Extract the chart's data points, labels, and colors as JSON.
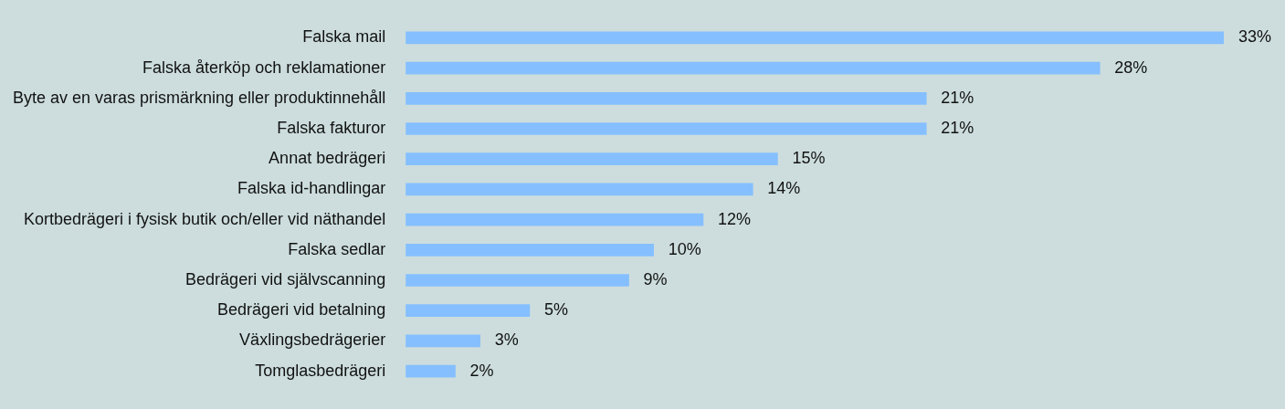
{
  "chart_data": {
    "type": "bar",
    "orientation": "horizontal",
    "tick_labels": "y",
    "color": "#85bfff",
    "categories": [
      "Falska mail",
      "Falska återköp och reklamationer",
      "Byte av en varas prismärkning eller produktinnehåll",
      "Falska fakturor",
      "Annat bedrägeri",
      "Falska id-handlingar",
      "Kortbedrägeri i fysisk butik och/eller vid näthandel",
      "Falska sedlar",
      "Bedrägeri vid självscanning",
      "Bedrägeri vid betalning",
      "Växlingsbedrägerier",
      "Tomglasbedrägeri"
    ],
    "values": [
      33,
      28,
      21,
      21,
      15,
      14,
      12,
      10,
      9,
      5,
      3,
      2
    ],
    "value_labels": [
      "33%",
      "28%",
      "21%",
      "21%",
      "15%",
      "14%",
      "12%",
      "10%",
      "9%",
      "5%",
      "3%",
      "2%"
    ]
  }
}
